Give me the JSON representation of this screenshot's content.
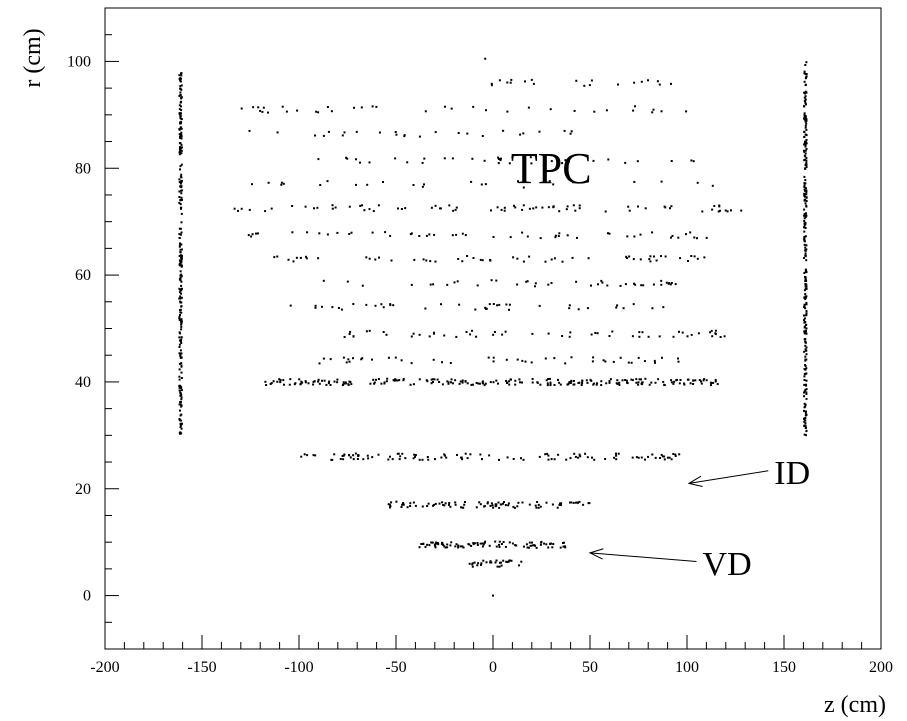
{
  "chart_data": {
    "type": "scatter",
    "title": "",
    "xlabel": "z (cm)",
    "ylabel": "r (cm)",
    "xlim": [
      -200,
      200
    ],
    "ylim": [
      -10,
      110
    ],
    "x_ticks": [
      -200,
      -150,
      -100,
      -50,
      0,
      50,
      100,
      150,
      200
    ],
    "y_ticks": [
      0,
      20,
      40,
      60,
      80,
      100
    ],
    "grid": false,
    "legend": "none",
    "annotations": [
      {
        "text": "TPC",
        "x": 30,
        "y": 80,
        "arrow_to": null
      },
      {
        "text": "ID",
        "x": 145,
        "y": 23,
        "arrow_to": [
          101,
          21
        ]
      },
      {
        "text": "VD",
        "x": 108,
        "y": 6,
        "arrow_to": [
          50,
          8
        ]
      }
    ],
    "series": [
      {
        "marker_color": "#000000",
        "clusters": [
          {
            "shape": "vertical",
            "z": -161,
            "r_range": [
              30,
              98
            ],
            "count": 260
          },
          {
            "shape": "vertical",
            "z": 161,
            "r_range": [
              30,
              100
            ],
            "count": 260
          },
          {
            "shape": "row",
            "r": 40,
            "z_range": [
              -118,
              116
            ],
            "count": 230
          },
          {
            "shape": "row",
            "r": 26,
            "z_range": [
              -105,
              100
            ],
            "count": 110
          },
          {
            "shape": "row",
            "r": 17,
            "z_range": [
              -55,
              52
            ],
            "count": 90
          },
          {
            "shape": "row",
            "r": 9.5,
            "z_range": [
              -38,
              38
            ],
            "count": 90
          },
          {
            "shape": "row",
            "r": 6,
            "z_range": [
              -12,
              15
            ],
            "count": 30
          },
          {
            "shape": "row",
            "r": 44,
            "z_range": [
              -90,
              105
            ],
            "count": 45
          },
          {
            "shape": "row",
            "r": 49,
            "z_range": [
              -90,
              122
            ],
            "count": 55
          },
          {
            "shape": "row",
            "r": 54,
            "z_range": [
              -106,
              100
            ],
            "count": 40
          },
          {
            "shape": "row",
            "r": 58.5,
            "z_range": [
              -92,
              95
            ],
            "count": 40
          },
          {
            "shape": "row",
            "r": 63,
            "z_range": [
              -120,
              114
            ],
            "count": 55
          },
          {
            "shape": "row",
            "r": 67.5,
            "z_range": [
              -130,
              112
            ],
            "count": 50
          },
          {
            "shape": "row",
            "r": 72.5,
            "z_range": [
              -135,
              128
            ],
            "count": 75
          },
          {
            "shape": "row",
            "r": 77,
            "z_range": [
              -132,
              120
            ],
            "count": 25
          },
          {
            "shape": "row",
            "r": 81.5,
            "z_range": [
              -110,
              108
            ],
            "count": 35
          },
          {
            "shape": "row",
            "r": 86.5,
            "z_range": [
              -130,
              50
            ],
            "count": 25
          },
          {
            "shape": "row",
            "r": 91,
            "z_range": [
              -130,
              105
            ],
            "count": 35
          },
          {
            "shape": "row",
            "r": 96,
            "z_range": [
              -10,
              95
            ],
            "count": 20
          },
          {
            "shape": "point",
            "z": 0,
            "r": 0
          },
          {
            "shape": "point",
            "z": -4,
            "r": 100.5
          }
        ]
      }
    ]
  }
}
